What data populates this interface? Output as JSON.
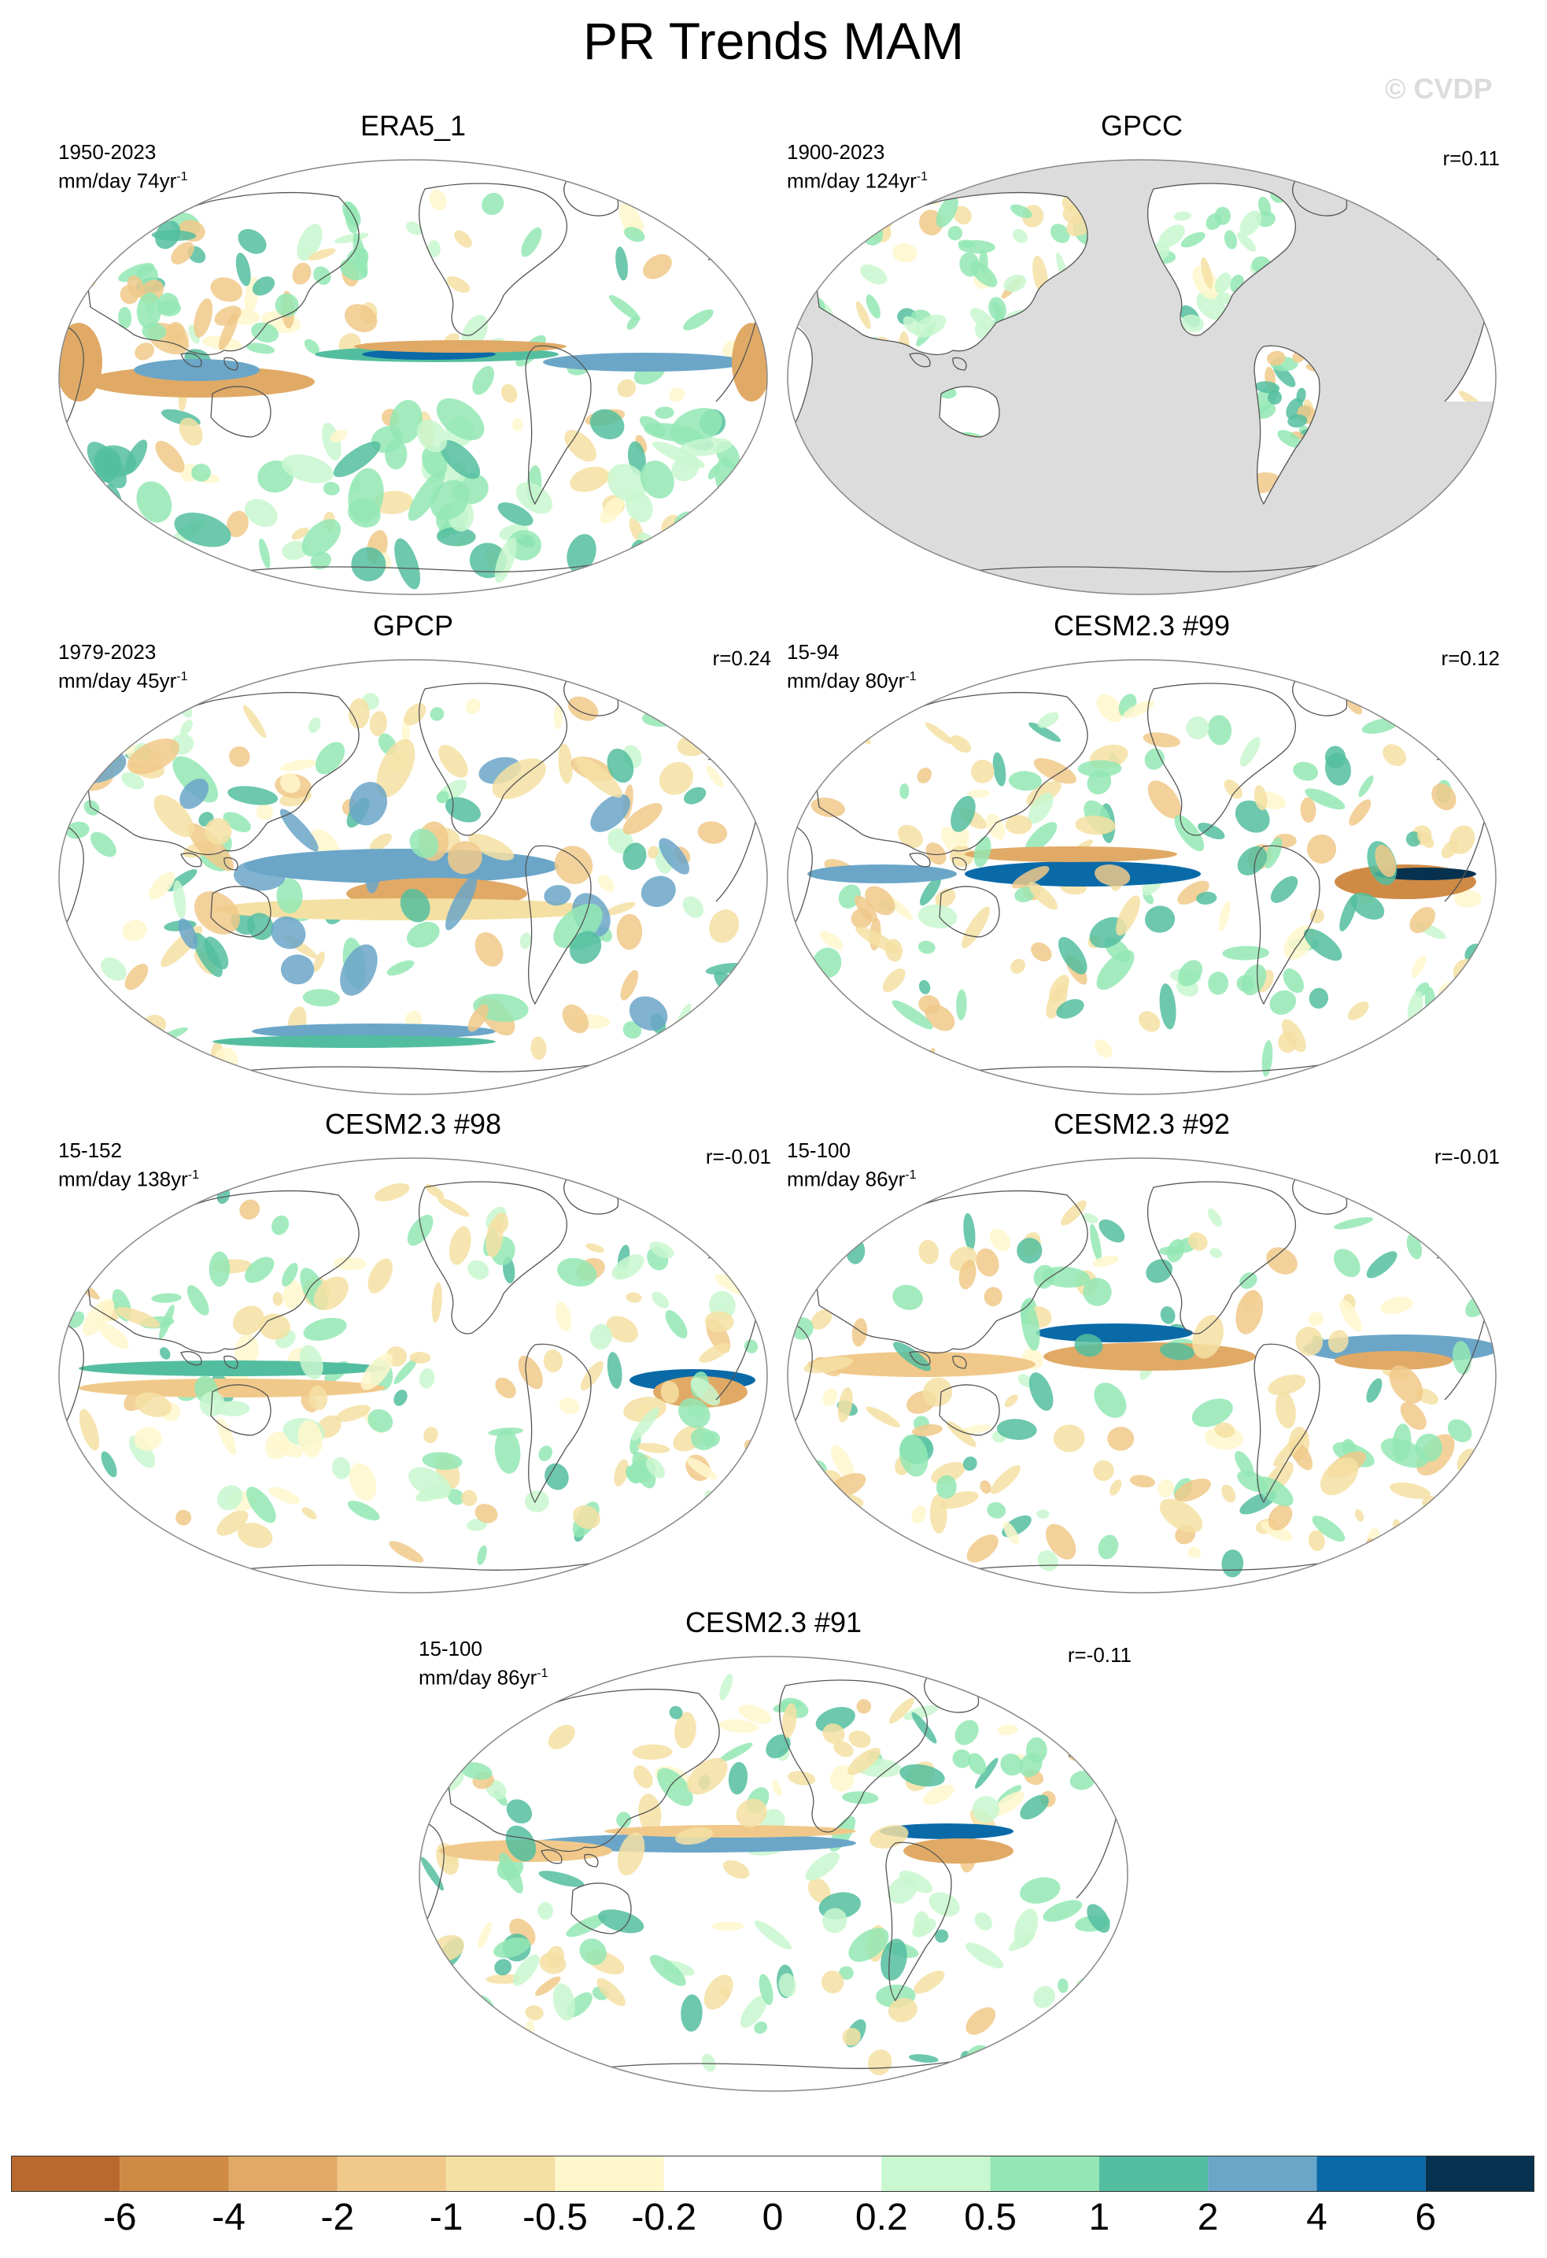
{
  "title": "PR Trends MAM",
  "watermark": "© CVDP",
  "panels": [
    {
      "title": "ERA5_1",
      "period": "1950-2023",
      "units_pre": "mm/day 74yr",
      "units_sup": "-1",
      "corr": "",
      "style": "era5",
      "land_mask": false
    },
    {
      "title": "GPCC",
      "period": "1900-2023",
      "units_pre": "mm/day 124yr",
      "units_sup": "-1",
      "corr": "r=0.11",
      "style": "gpcc",
      "land_mask": true
    },
    {
      "title": "GPCP",
      "period": "1979-2023",
      "units_pre": "mm/day 45yr",
      "units_sup": "-1",
      "corr": "r=0.24",
      "style": "gpcp",
      "land_mask": false
    },
    {
      "title": "CESM2.3 #99",
      "period": "15-94",
      "units_pre": "mm/day 80yr",
      "units_sup": "-1",
      "corr": "r=0.12",
      "style": "cesm99",
      "land_mask": false
    },
    {
      "title": "CESM2.3 #98",
      "period": "15-152",
      "units_pre": "mm/day 138yr",
      "units_sup": "-1",
      "corr": "r=-0.01",
      "style": "cesm98",
      "land_mask": false
    },
    {
      "title": "CESM2.3 #92",
      "period": "15-100",
      "units_pre": "mm/day 86yr",
      "units_sup": "-1",
      "corr": "r=-0.01",
      "style": "cesm92",
      "land_mask": false
    },
    {
      "title": "CESM2.3 #91",
      "period": "15-100",
      "units_pre": "mm/day 86yr",
      "units_sup": "-1",
      "corr": "r=-0.11",
      "style": "cesm91",
      "land_mask": false
    }
  ],
  "colorbar": {
    "labels": [
      "-6",
      "-4",
      "-2",
      "-1",
      "-0.5",
      "-0.2",
      "0",
      "0.2",
      "0.5",
      "1",
      "2",
      "4",
      "6"
    ],
    "colors": [
      "#b9692e",
      "#cf8a45",
      "#e0aa66",
      "#f0c98a",
      "#f5e0a3",
      "#fff7cc",
      "#ffffff",
      "#ffffff",
      "#c9f7cf",
      "#93e7b4",
      "#53be9f",
      "#6ba6c8",
      "#0a6aa8",
      "#07324f"
    ]
  }
}
